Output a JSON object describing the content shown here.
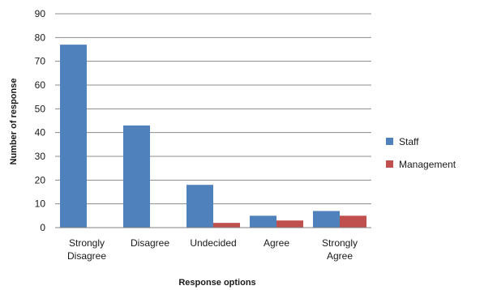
{
  "chart_data": {
    "type": "bar",
    "title": "",
    "xlabel": "Response options",
    "ylabel": "Number of response",
    "ylim": [
      0,
      90
    ],
    "yticks": [
      0,
      10,
      20,
      30,
      40,
      50,
      60,
      70,
      80,
      90
    ],
    "categories": [
      [
        "Strongly",
        "Disagree"
      ],
      [
        "Disagree"
      ],
      [
        "Undecided"
      ],
      [
        "Agree"
      ],
      [
        "Strongly",
        "Agree"
      ]
    ],
    "series": [
      {
        "name": "Staff",
        "color": "#4f81bd",
        "values": [
          77,
          43,
          18,
          5,
          7
        ]
      },
      {
        "name": "Management",
        "color": "#c0504d",
        "values": [
          0,
          0,
          2,
          3,
          5
        ]
      }
    ],
    "grid": true,
    "legend_position": "right"
  }
}
